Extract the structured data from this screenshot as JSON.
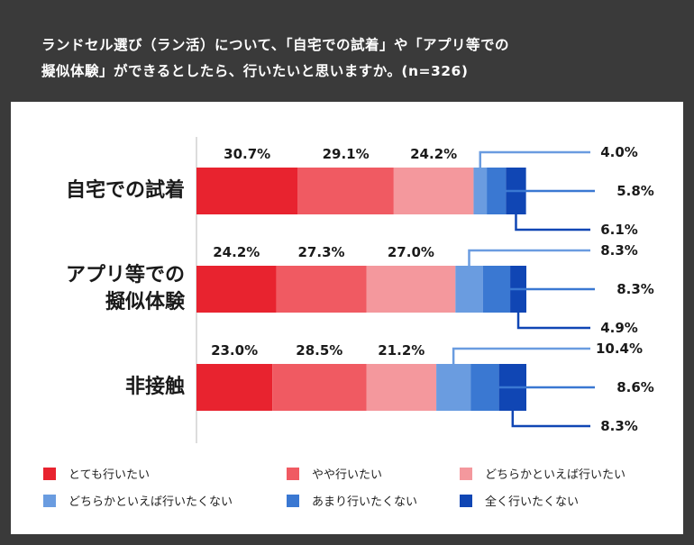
{
  "title": {
    "line1": "ランドセル選び（ラン活）について、「自宅での試着」や「アプリ等での",
    "line2": "擬似体験」ができるとしたら、行いたいと思いますか。(n=326)"
  },
  "colors": {
    "header_bg": "#3a3a3a",
    "panel_bg": "#ffffff",
    "segments": [
      "#e8232f",
      "#f05a62",
      "#f4989d",
      "#6a9ce0",
      "#3a78d2",
      "#1046b4"
    ]
  },
  "chart_data": {
    "type": "bar",
    "orientation": "horizontal-stacked-100",
    "xlim": [
      0,
      100
    ],
    "unit": "%",
    "categories": [
      {
        "label_lines": [
          "自宅での試着"
        ]
      },
      {
        "label_lines": [
          "アプリ等での",
          "擬似体験"
        ]
      },
      {
        "label_lines": [
          "非接触"
        ]
      }
    ],
    "series": [
      {
        "name": "とても行いたい",
        "values": [
          30.7,
          24.2,
          23.0
        ],
        "labels": [
          "30.7%",
          "24.2%",
          "23.0%"
        ]
      },
      {
        "name": "やや行いたい",
        "values": [
          29.1,
          27.3,
          28.5
        ],
        "labels": [
          "29.1%",
          "27.3%",
          "28.5%"
        ]
      },
      {
        "name": "どちらかといえば行いたい",
        "values": [
          24.2,
          27.0,
          21.2
        ],
        "labels": [
          "24.2%",
          "27.0%",
          "21.2%"
        ]
      },
      {
        "name": "どちらかといえば行いたくない",
        "values": [
          4.0,
          8.3,
          10.4
        ],
        "labels": [
          "4.0%",
          "8.3%",
          "10.4%"
        ]
      },
      {
        "name": "あまり行いたくない",
        "values": [
          5.8,
          8.3,
          8.6
        ],
        "labels": [
          "5.8%",
          "8.3%",
          "8.6%"
        ]
      },
      {
        "name": "全く行いたくない",
        "values": [
          6.1,
          4.9,
          8.3
        ],
        "labels": [
          "6.1%",
          "4.9%",
          "8.3%"
        ]
      }
    ]
  }
}
